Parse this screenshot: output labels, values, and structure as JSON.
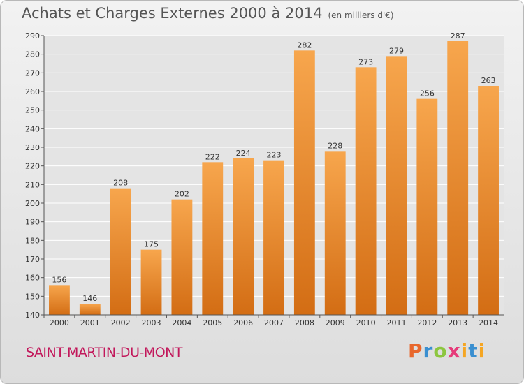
{
  "title": "Achats et Charges Externes 2000 à 2014",
  "unit": "(en milliers d'€)",
  "commune": "SAINT-MARTIN-DU-MONT",
  "logo_text": "Proxiti",
  "colors": {
    "bar_light": "#f7a64d",
    "bar_dark": "#d36d14",
    "commune": "#c2185b",
    "grid": "#ffffff"
  },
  "chart_data": {
    "type": "bar",
    "categories": [
      "2000",
      "2001",
      "2002",
      "2003",
      "2004",
      "2005",
      "2006",
      "2007",
      "2008",
      "2009",
      "2010",
      "2011",
      "2012",
      "2013",
      "2014"
    ],
    "values": [
      156,
      146,
      208,
      175,
      202,
      222,
      224,
      223,
      282,
      228,
      273,
      279,
      256,
      287,
      263
    ],
    "ylim": [
      140,
      290
    ],
    "yticks": [
      140,
      150,
      160,
      170,
      180,
      190,
      200,
      210,
      220,
      230,
      240,
      250,
      260,
      270,
      280,
      290
    ],
    "grid": true,
    "data_labels": true
  }
}
